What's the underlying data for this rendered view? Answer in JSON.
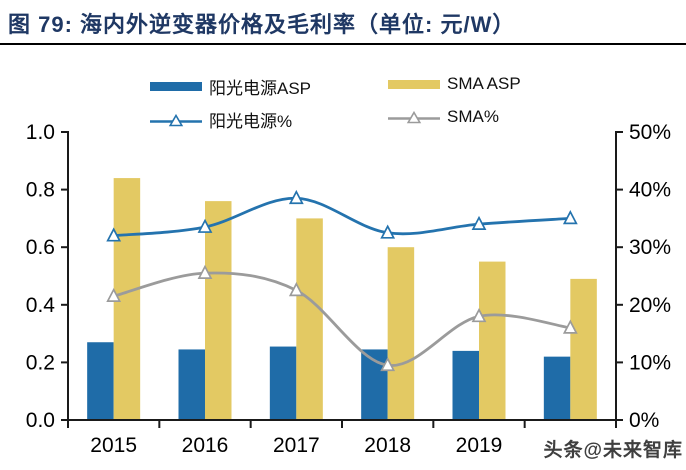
{
  "header": {
    "title": "图 79:  海内外逆变器价格及毛利率（单位: 元/W）"
  },
  "legend": {
    "items": [
      {
        "label": "阳光电源ASP",
        "type": "bar",
        "color": "#1f6ca8"
      },
      {
        "label": "SMA ASP",
        "type": "bar",
        "color": "#e3c963"
      },
      {
        "label": "阳光电源%",
        "type": "line",
        "color": "#2473ae"
      },
      {
        "label": "SMA%",
        "type": "line",
        "color": "#9b9b9b"
      }
    ]
  },
  "watermark": {
    "text": "头条@未来智库"
  },
  "chart_data": {
    "type": "combo-bar-line",
    "title": "海内外逆变器价格及毛利率",
    "unit": "元/W",
    "categories": [
      "2015",
      "2016",
      "2017",
      "2018",
      "2019",
      ""
    ],
    "series": [
      {
        "name": "阳光电源ASP",
        "chart": "bar",
        "axis": "left",
        "color": "#1f6ca8",
        "values": [
          0.27,
          0.245,
          0.255,
          0.245,
          0.24,
          0.22
        ]
      },
      {
        "name": "SMA ASP",
        "chart": "bar",
        "axis": "left",
        "color": "#e3c963",
        "values": [
          0.84,
          0.76,
          0.7,
          0.6,
          0.55,
          0.49
        ]
      },
      {
        "name": "阳光电源%",
        "chart": "line",
        "axis": "right",
        "color": "#2473ae",
        "marker": "hollow-triangle",
        "values": [
          32,
          33.5,
          38.5,
          32.5,
          34,
          35
        ]
      },
      {
        "name": "SMA%",
        "chart": "line",
        "axis": "right",
        "color": "#9b9b9b",
        "marker": "hollow-triangle",
        "values": [
          21.5,
          25.5,
          22.5,
          9.5,
          18,
          16
        ]
      }
    ],
    "left_axis": {
      "min": 0,
      "max": 1.0,
      "step": 0.2,
      "tick_labels": [
        "0.0",
        "0.2",
        "0.4",
        "0.6",
        "0.8",
        "1.0"
      ]
    },
    "right_axis": {
      "min": 0,
      "max": 50,
      "step": 10,
      "tick_labels": [
        "0%",
        "10%",
        "20%",
        "30%",
        "40%",
        "50%"
      ]
    },
    "grid": false,
    "legend_position": "top"
  }
}
